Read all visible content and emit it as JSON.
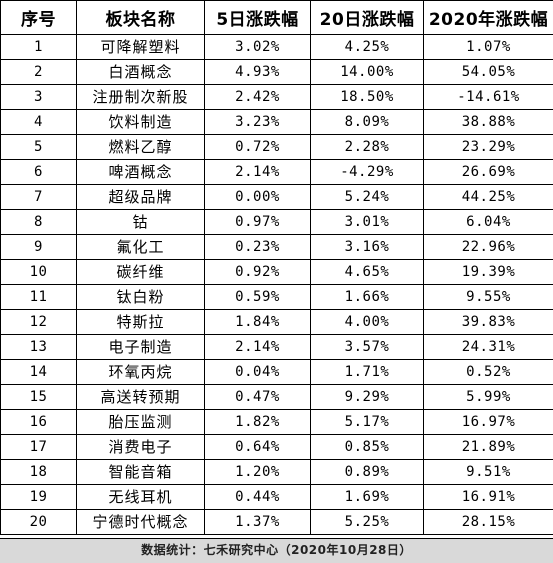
{
  "table": {
    "columns": [
      "序号",
      "板块名称",
      "5日涨跌幅",
      "20日涨跌幅",
      "2020年涨跌幅"
    ],
    "rows": [
      [
        "1",
        "可降解塑料",
        "3.02%",
        "4.25%",
        "1.07%"
      ],
      [
        "2",
        "白酒概念",
        "4.93%",
        "14.00%",
        "54.05%"
      ],
      [
        "3",
        "注册制次新股",
        "2.42%",
        "18.50%",
        "-14.61%"
      ],
      [
        "4",
        "饮料制造",
        "3.23%",
        "8.09%",
        "38.88%"
      ],
      [
        "5",
        "燃料乙醇",
        "0.72%",
        "2.28%",
        "23.29%"
      ],
      [
        "6",
        "啤酒概念",
        "2.14%",
        "-4.29%",
        "26.69%"
      ],
      [
        "7",
        "超级品牌",
        "0.00%",
        "5.24%",
        "44.25%"
      ],
      [
        "8",
        "钴",
        "0.97%",
        "3.01%",
        "6.04%"
      ],
      [
        "9",
        "氟化工",
        "0.23%",
        "3.16%",
        "22.96%"
      ],
      [
        "10",
        "碳纤维",
        "0.92%",
        "4.65%",
        "19.39%"
      ],
      [
        "11",
        "钛白粉",
        "0.59%",
        "1.66%",
        "9.55%"
      ],
      [
        "12",
        "特斯拉",
        "1.84%",
        "4.00%",
        "39.83%"
      ],
      [
        "13",
        "电子制造",
        "2.14%",
        "3.57%",
        "24.31%"
      ],
      [
        "14",
        "环氧丙烷",
        "0.04%",
        "1.71%",
        "0.52%"
      ],
      [
        "15",
        "高送转预期",
        "0.47%",
        "9.29%",
        "5.99%"
      ],
      [
        "16",
        "胎压监测",
        "1.82%",
        "5.17%",
        "16.97%"
      ],
      [
        "17",
        "消费电子",
        "0.64%",
        "0.85%",
        "21.89%"
      ],
      [
        "18",
        "智能音箱",
        "1.20%",
        "0.89%",
        "9.51%"
      ],
      [
        "19",
        "无线耳机",
        "0.44%",
        "1.69%",
        "16.91%"
      ],
      [
        "20",
        "宁德时代概念",
        "1.37%",
        "5.25%",
        "28.15%"
      ]
    ]
  },
  "footer": {
    "text": "数据统计：七禾研究中心（2020年10月28日）"
  },
  "colors": {
    "border": "#000000",
    "footer_background": "#d9d9d9"
  }
}
